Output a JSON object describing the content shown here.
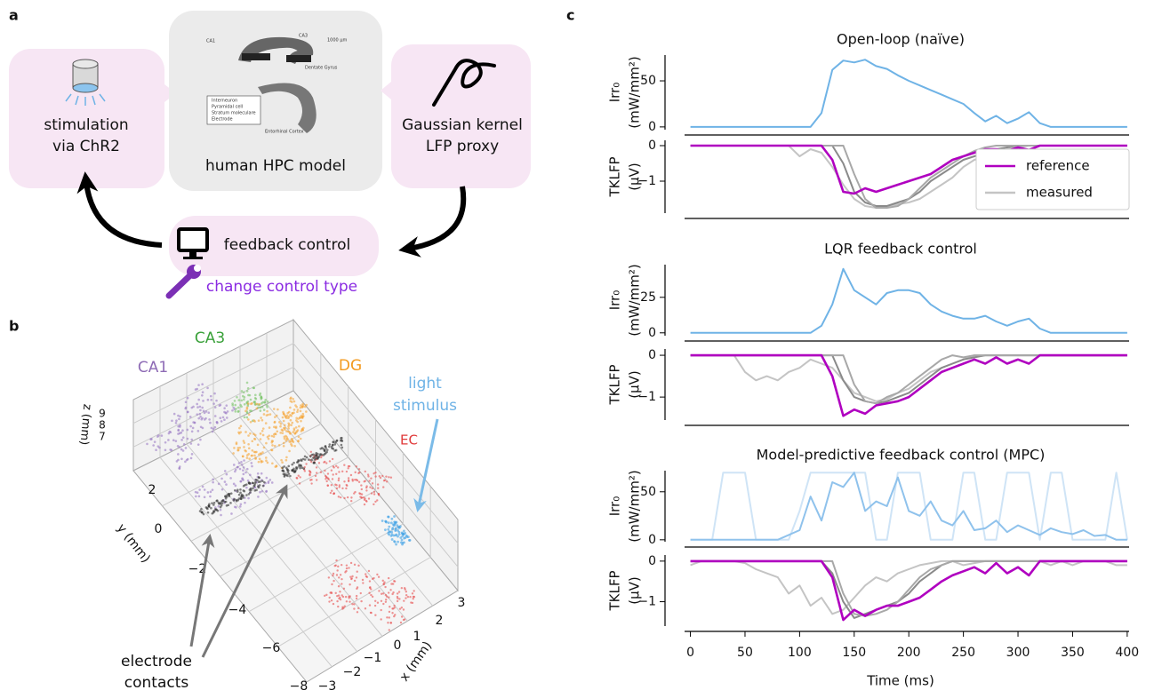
{
  "panel_labels": [
    "a",
    "b",
    "c"
  ],
  "diagram": {
    "stimulation": [
      "stimulation",
      "via ChR2"
    ],
    "model": "human HPC model",
    "proxy": [
      "Gaussian kernel",
      "LFP proxy"
    ],
    "control": "feedback control",
    "change": "change control type",
    "model_inset": [
      "CA1",
      "CA3",
      "1000 μm",
      "Dentate Gyrus",
      "Interneuron",
      "Pyramidal cell",
      "Stratum moleculare",
      "Electrode",
      "Entorhinal Cortex"
    ]
  },
  "scene3d": {
    "regions": [
      "CA1",
      "CA3",
      "DG",
      "EC"
    ],
    "stimulus": [
      "light",
      "stimulus"
    ],
    "electrodes": [
      "electrode",
      "contacts"
    ],
    "x_label": "x (mm)",
    "y_label": "y (mm)",
    "z_label": "z (mm)",
    "x_ticks": [
      "3",
      "2",
      "1",
      "0",
      "−1",
      "−2",
      "−3"
    ],
    "y_ticks": [
      "2",
      "0",
      "−2",
      "−4",
      "−6",
      "−8"
    ],
    "z_ticks": [
      "9",
      "8",
      "7"
    ]
  },
  "chart_data": [
    {
      "type": "line",
      "title": "Open-loop (naïve)",
      "ylabel": [
        "Irr₀",
        "(mW/mm²)"
      ],
      "x": [
        0,
        10,
        20,
        30,
        40,
        50,
        60,
        70,
        80,
        90,
        100,
        110,
        120,
        130,
        140,
        150,
        160,
        170,
        180,
        190,
        200,
        210,
        220,
        230,
        240,
        250,
        260,
        270,
        280,
        290,
        300,
        310,
        320,
        330,
        340,
        350,
        360,
        370,
        380,
        390,
        400
      ],
      "xlim": [
        -20,
        405
      ],
      "ylim": [
        -3,
        78
      ],
      "yticks": [
        0,
        50
      ],
      "series": [
        {
          "color": "#6fb3e6",
          "values": [
            0,
            0,
            0,
            0,
            0,
            0,
            0,
            0,
            0,
            0,
            0,
            0,
            15,
            62,
            72,
            70,
            73,
            66,
            63,
            56,
            50,
            45,
            40,
            35,
            30,
            25,
            15,
            6,
            12,
            4,
            9,
            16,
            4,
            0,
            0,
            0,
            0,
            0,
            0,
            0,
            0
          ]
        }
      ]
    },
    {
      "type": "line",
      "ylabel": [
        "TKLFP",
        "(μV)"
      ],
      "legend": "lower right",
      "x": [
        0,
        10,
        20,
        30,
        40,
        50,
        60,
        70,
        80,
        90,
        100,
        110,
        120,
        130,
        140,
        150,
        160,
        170,
        180,
        190,
        200,
        210,
        220,
        230,
        240,
        250,
        260,
        270,
        280,
        290,
        300,
        310,
        320,
        330,
        340,
        350,
        360,
        370,
        380,
        390,
        400
      ],
      "xlim": [
        -20,
        405
      ],
      "ylim": [
        -1.9,
        0.15
      ],
      "yticks": [
        0,
        {
          "value": -1,
          "label": "−1"
        }
      ],
      "series": [
        {
          "name": "measured",
          "color": "#c4c4c4",
          "values": [
            0,
            0,
            0,
            0,
            0,
            0,
            0,
            0,
            0,
            0,
            -0.3,
            -0.1,
            -0.2,
            -0.6,
            -1.1,
            -1.5,
            -1.7,
            -1.75,
            -1.7,
            -1.65,
            -1.6,
            -1.5,
            -1.3,
            -1.1,
            -0.9,
            -0.6,
            -0.4,
            -0.3,
            -0.2,
            -0.1,
            -0.05,
            0,
            0,
            0,
            0,
            0,
            0,
            0,
            0,
            0,
            0
          ]
        },
        {
          "color": "#8a8a8a",
          "values": [
            0,
            0,
            0,
            0,
            0,
            0,
            0,
            0,
            0,
            0,
            0,
            0,
            0,
            0,
            -0.5,
            -1.3,
            -1.6,
            -1.7,
            -1.7,
            -1.6,
            -1.5,
            -1.3,
            -1.0,
            -0.8,
            -0.6,
            -0.4,
            -0.3,
            -0.2,
            -0.1,
            -0.05,
            0,
            0,
            0,
            0,
            0,
            0,
            0,
            0,
            0,
            0,
            0
          ]
        },
        {
          "color": "#a8a8a8",
          "values": [
            0,
            0,
            0,
            0,
            0,
            0,
            0,
            0,
            0,
            0,
            0,
            0,
            0,
            0,
            0,
            -0.8,
            -1.5,
            -1.75,
            -1.75,
            -1.7,
            -1.5,
            -1.2,
            -0.9,
            -0.7,
            -0.5,
            -0.3,
            -0.15,
            -0.05,
            0,
            0,
            0,
            0,
            0,
            0,
            0,
            0,
            0,
            0,
            0,
            0,
            0
          ]
        },
        {
          "name": "reference",
          "color": "#b000c0",
          "values": [
            0,
            0,
            0,
            0,
            0,
            0,
            0,
            0,
            0,
            0,
            0,
            0,
            0,
            -0.4,
            -1.3,
            -1.35,
            -1.2,
            -1.3,
            -1.2,
            -1.1,
            -1.0,
            -0.9,
            -0.8,
            -0.6,
            -0.4,
            -0.3,
            -0.2,
            -0.1,
            -0.1,
            -0.15,
            -0.05,
            -0.12,
            0,
            0,
            0,
            0,
            0,
            0,
            0,
            0,
            0
          ]
        }
      ]
    },
    {
      "type": "line",
      "title": "LQR feedback control",
      "ylabel": [
        "Irr₀",
        "(mW/mm²)"
      ],
      "x": [
        0,
        10,
        20,
        30,
        40,
        50,
        60,
        70,
        80,
        90,
        100,
        110,
        120,
        130,
        140,
        150,
        160,
        170,
        180,
        190,
        200,
        210,
        220,
        230,
        240,
        250,
        260,
        270,
        280,
        290,
        300,
        310,
        320,
        330,
        340,
        350,
        360,
        370,
        380,
        390,
        400
      ],
      "xlim": [
        -20,
        405
      ],
      "ylim": [
        -2,
        48
      ],
      "yticks": [
        0,
        25
      ],
      "series": [
        {
          "color": "#6fb3e6",
          "values": [
            0,
            0,
            0,
            0,
            0,
            0,
            0,
            0,
            0,
            0,
            0,
            0,
            5,
            20,
            45,
            30,
            25,
            20,
            28,
            30,
            30,
            28,
            20,
            15,
            12,
            10,
            10,
            12,
            8,
            5,
            8,
            10,
            3,
            0,
            0,
            0,
            0,
            0,
            0,
            0,
            0
          ]
        }
      ]
    },
    {
      "type": "line",
      "ylabel": [
        "TKLFP",
        "(μV)"
      ],
      "x": [
        0,
        10,
        20,
        30,
        40,
        50,
        60,
        70,
        80,
        90,
        100,
        110,
        120,
        130,
        140,
        150,
        160,
        170,
        180,
        190,
        200,
        210,
        220,
        230,
        240,
        250,
        260,
        270,
        280,
        290,
        300,
        310,
        320,
        330,
        340,
        350,
        360,
        370,
        380,
        390,
        400
      ],
      "xlim": [
        -20,
        405
      ],
      "ylim": [
        -1.55,
        0.15
      ],
      "yticks": [
        0,
        {
          "value": -1,
          "label": "−1"
        }
      ],
      "series": [
        {
          "color": "#c4c4c4",
          "values": [
            0,
            0,
            0,
            0,
            0,
            -0.4,
            -0.6,
            -0.5,
            -0.6,
            -0.4,
            -0.3,
            -0.1,
            -0.2,
            -0.3,
            -0.6,
            -0.9,
            -1.0,
            -1.1,
            -1.05,
            -0.9,
            -0.8,
            -0.6,
            -0.4,
            -0.3,
            -0.2,
            -0.1,
            0,
            0,
            0,
            0,
            0,
            0,
            0,
            0,
            0,
            0,
            0,
            0,
            0,
            0,
            0
          ]
        },
        {
          "color": "#8a8a8a",
          "values": [
            0,
            0,
            0,
            0,
            0,
            0,
            0,
            0,
            0,
            0,
            0,
            0,
            0,
            0,
            -0.6,
            -1.0,
            -1.1,
            -1.15,
            -1.1,
            -1.0,
            -0.9,
            -0.7,
            -0.5,
            -0.3,
            -0.2,
            -0.1,
            -0.05,
            0,
            0,
            0,
            0,
            0,
            0,
            0,
            0,
            0,
            0,
            0,
            0,
            0,
            0
          ]
        },
        {
          "color": "#a8a8a8",
          "values": [
            0,
            0,
            0,
            0,
            0,
            0,
            0,
            0,
            0,
            0,
            0,
            0,
            0,
            0,
            0,
            -0.7,
            -1.1,
            -1.15,
            -1.0,
            -0.9,
            -0.7,
            -0.5,
            -0.3,
            -0.1,
            0,
            -0.05,
            0,
            0,
            0,
            0,
            0,
            0,
            0,
            0,
            0,
            0,
            0,
            0,
            0,
            0,
            0
          ]
        },
        {
          "color": "#b000c0",
          "values": [
            0,
            0,
            0,
            0,
            0,
            0,
            0,
            0,
            0,
            0,
            0,
            0,
            0,
            -0.5,
            -1.45,
            -1.3,
            -1.4,
            -1.2,
            -1.15,
            -1.1,
            -1.0,
            -0.8,
            -0.6,
            -0.4,
            -0.3,
            -0.2,
            -0.1,
            -0.2,
            -0.05,
            -0.2,
            -0.1,
            -0.2,
            0,
            0,
            0,
            0,
            0,
            0,
            0,
            0,
            0
          ]
        }
      ]
    },
    {
      "type": "line",
      "title": "Model-predictive feedback control (MPC)",
      "ylabel": [
        "Irr₀",
        "(mW/mm²)"
      ],
      "x": [
        0,
        10,
        20,
        30,
        40,
        50,
        60,
        70,
        80,
        90,
        100,
        110,
        120,
        130,
        140,
        150,
        160,
        170,
        180,
        190,
        200,
        210,
        220,
        230,
        240,
        250,
        260,
        270,
        280,
        290,
        300,
        310,
        320,
        330,
        340,
        350,
        360,
        370,
        380,
        390,
        400
      ],
      "xlim": [
        -20,
        405
      ],
      "ylim": [
        -2,
        72
      ],
      "yticks": [
        0,
        50
      ],
      "series": [
        {
          "color": "#cfe4f6",
          "values": [
            0,
            0,
            0,
            70,
            70,
            70,
            0,
            0,
            0,
            0,
            30,
            70,
            70,
            70,
            70,
            70,
            70,
            0,
            0,
            70,
            70,
            70,
            0,
            0,
            0,
            70,
            70,
            0,
            0,
            70,
            70,
            70,
            0,
            70,
            70,
            0,
            0,
            0,
            0,
            70,
            0
          ]
        },
        {
          "color": "#8fc2ec",
          "values": [
            0,
            0,
            0,
            0,
            0,
            0,
            0,
            0,
            0,
            5,
            10,
            45,
            20,
            60,
            55,
            70,
            30,
            40,
            35,
            65,
            30,
            25,
            40,
            20,
            15,
            30,
            10,
            12,
            20,
            8,
            15,
            10,
            5,
            12,
            8,
            6,
            10,
            4,
            5,
            0,
            0
          ]
        }
      ]
    },
    {
      "type": "line",
      "ylabel": [
        "TKLFP",
        "(μV)"
      ],
      "xlabel": "Time (ms)",
      "x": [
        0,
        10,
        20,
        30,
        40,
        50,
        60,
        70,
        80,
        90,
        100,
        110,
        120,
        130,
        140,
        150,
        160,
        170,
        180,
        190,
        200,
        210,
        220,
        230,
        240,
        250,
        260,
        270,
        280,
        290,
        300,
        310,
        320,
        330,
        340,
        350,
        360,
        370,
        380,
        390,
        400
      ],
      "xlim": [
        -20,
        405
      ],
      "ylim": [
        -1.6,
        0.15
      ],
      "yticks": [
        0,
        {
          "value": -1,
          "label": "−1"
        }
      ],
      "xticks": [
        0,
        50,
        100,
        150,
        200,
        250,
        300,
        350,
        400
      ],
      "series": [
        {
          "color": "#c4c4c4",
          "values": [
            -0.1,
            0,
            0,
            0,
            0,
            -0.05,
            -0.2,
            -0.3,
            -0.4,
            -0.8,
            -0.6,
            -1.1,
            -0.9,
            -1.3,
            -1.2,
            -0.9,
            -0.6,
            -0.4,
            -0.5,
            -0.3,
            -0.2,
            -0.1,
            -0.05,
            0,
            0,
            -0.1,
            -0.05,
            0,
            0,
            0,
            0,
            0,
            0,
            -0.1,
            0,
            -0.1,
            0,
            0,
            0,
            -0.1,
            -0.1
          ]
        },
        {
          "color": "#8a8a8a",
          "values": [
            0,
            0,
            0,
            0,
            0,
            0,
            0,
            0,
            0,
            0,
            0,
            0,
            0,
            -0.3,
            -1.0,
            -1.4,
            -1.3,
            -1.2,
            -1.1,
            -1.0,
            -0.8,
            -0.5,
            -0.3,
            -0.1,
            0,
            0,
            0,
            0,
            0,
            0,
            0,
            0,
            0,
            0,
            0,
            0,
            0,
            0,
            0,
            0,
            0
          ]
        },
        {
          "color": "#a8a8a8",
          "values": [
            0,
            0,
            0,
            0,
            0,
            0,
            0,
            0,
            0,
            0,
            0,
            0,
            0,
            0,
            -0.8,
            -1.3,
            -1.35,
            -1.3,
            -1.2,
            -1.0,
            -0.7,
            -0.4,
            -0.2,
            -0.1,
            0,
            0,
            0,
            0,
            0,
            0,
            0,
            0,
            0,
            0,
            0,
            0,
            0,
            0,
            0,
            0,
            0
          ]
        },
        {
          "color": "#b000c0",
          "values": [
            0,
            0,
            0,
            0,
            0,
            0,
            0,
            0,
            0,
            0,
            0,
            0,
            0,
            -0.4,
            -1.45,
            -1.2,
            -1.35,
            -1.2,
            -1.1,
            -1.1,
            -1.0,
            -0.9,
            -0.7,
            -0.5,
            -0.35,
            -0.25,
            -0.15,
            -0.3,
            -0.05,
            -0.3,
            -0.15,
            -0.35,
            0,
            0,
            0,
            0,
            0,
            0,
            0,
            0,
            0
          ]
        }
      ]
    }
  ]
}
